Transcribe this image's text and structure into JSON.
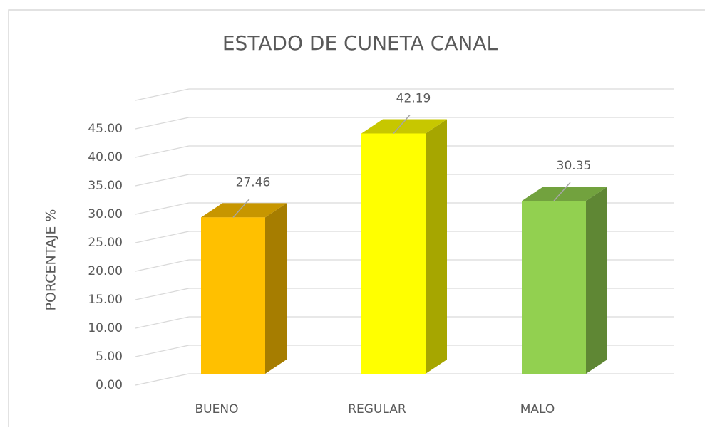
{
  "chart_data": {
    "type": "bar3d",
    "title": "ESTADO DE CUNETA CANAL",
    "y_label": "PORCENTAJE %",
    "categories": [
      "BUENO",
      "REGULAR",
      "MALO"
    ],
    "values": [
      27.46,
      42.19,
      30.35
    ],
    "colors": [
      "#ffc000",
      "#ffff00",
      "#92d050"
    ],
    "ylim": [
      0,
      50
    ],
    "yticks": [
      {
        "value": 0,
        "label": "0.00"
      },
      {
        "value": 5,
        "label": "5.00"
      },
      {
        "value": 10,
        "label": "10.00"
      },
      {
        "value": 15,
        "label": "15.00"
      },
      {
        "value": 20,
        "label": "20.00"
      },
      {
        "value": 25,
        "label": "25.00"
      },
      {
        "value": 30,
        "label": "30.00"
      },
      {
        "value": 35,
        "label": "35.00"
      },
      {
        "value": 40,
        "label": "40.00"
      },
      {
        "value": 45,
        "label": "45.00"
      }
    ],
    "grid": true
  }
}
